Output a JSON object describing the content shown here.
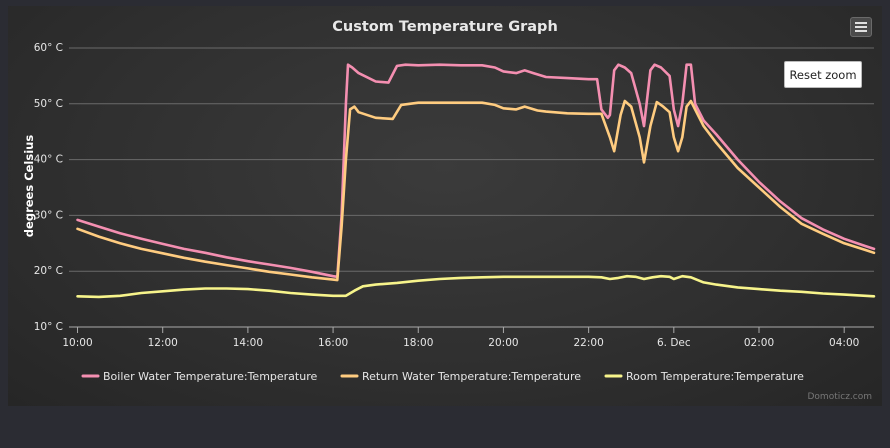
{
  "chart_data": {
    "type": "line",
    "title": "Custom Temperature Graph",
    "ylabel": "degrees Celsius",
    "xlabel": "",
    "y_unit_suffix": "° C",
    "ylim": [
      10,
      60
    ],
    "y_ticks": [
      10,
      20,
      30,
      40,
      50,
      60
    ],
    "x_range_hours": [
      9.8,
      28.7
    ],
    "x_ticks": [
      {
        "h": 10,
        "label": "10:00"
      },
      {
        "h": 12,
        "label": "12:00"
      },
      {
        "h": 14,
        "label": "14:00"
      },
      {
        "h": 16,
        "label": "16:00"
      },
      {
        "h": 18,
        "label": "18:00"
      },
      {
        "h": 20,
        "label": "20:00"
      },
      {
        "h": 22,
        "label": "22:00"
      },
      {
        "h": 24,
        "label": "6. Dec"
      },
      {
        "h": 26,
        "label": "02:00"
      },
      {
        "h": 28,
        "label": "04:00"
      }
    ],
    "grid": true,
    "legend_position": "bottom",
    "series": [
      {
        "name": "Boiler Water Temperature:Temperature",
        "color": "#f48fb1",
        "points": [
          [
            10,
            29.2
          ],
          [
            10.5,
            28
          ],
          [
            11,
            26.8
          ],
          [
            11.5,
            25.8
          ],
          [
            12,
            24.9
          ],
          [
            12.5,
            24
          ],
          [
            13,
            23.3
          ],
          [
            13.5,
            22.5
          ],
          [
            14,
            21.8
          ],
          [
            14.5,
            21.2
          ],
          [
            15,
            20.6
          ],
          [
            15.5,
            19.9
          ],
          [
            16,
            19.1
          ],
          [
            16.1,
            19
          ],
          [
            16.2,
            30
          ],
          [
            16.3,
            50
          ],
          [
            16.35,
            57
          ],
          [
            16.45,
            56.5
          ],
          [
            16.6,
            55.5
          ],
          [
            17,
            54
          ],
          [
            17.3,
            53.8
          ],
          [
            17.5,
            56.8
          ],
          [
            17.7,
            57
          ],
          [
            18,
            56.9
          ],
          [
            18.5,
            57
          ],
          [
            19,
            56.9
          ],
          [
            19.5,
            56.9
          ],
          [
            19.8,
            56.5
          ],
          [
            20,
            55.8
          ],
          [
            20.3,
            55.5
          ],
          [
            20.5,
            56
          ],
          [
            20.7,
            55.5
          ],
          [
            21,
            54.8
          ],
          [
            21.5,
            54.6
          ],
          [
            22,
            54.4
          ],
          [
            22.2,
            54.4
          ],
          [
            22.3,
            49
          ],
          [
            22.45,
            47.5
          ],
          [
            22.5,
            48
          ],
          [
            22.6,
            56
          ],
          [
            22.7,
            57
          ],
          [
            22.85,
            56.5
          ],
          [
            23,
            55.5
          ],
          [
            23.2,
            50
          ],
          [
            23.3,
            46
          ],
          [
            23.45,
            56
          ],
          [
            23.55,
            57
          ],
          [
            23.7,
            56.5
          ],
          [
            23.9,
            55
          ],
          [
            24,
            49
          ],
          [
            24.1,
            46
          ],
          [
            24.2,
            50
          ],
          [
            24.3,
            57
          ],
          [
            24.4,
            57
          ],
          [
            24.5,
            50
          ],
          [
            24.7,
            47
          ],
          [
            25,
            44.5
          ],
          [
            25.5,
            40
          ],
          [
            26,
            36
          ],
          [
            26.5,
            32.5
          ],
          [
            27,
            29.5
          ],
          [
            27.5,
            27.5
          ],
          [
            28,
            25.8
          ],
          [
            28.5,
            24.5
          ],
          [
            28.7,
            24
          ]
        ]
      },
      {
        "name": "Return Water Temperature:Temperature",
        "color": "#ffcc80",
        "points": [
          [
            10,
            27.6
          ],
          [
            10.5,
            26.2
          ],
          [
            11,
            25
          ],
          [
            11.5,
            24
          ],
          [
            12,
            23.2
          ],
          [
            12.5,
            22.4
          ],
          [
            13,
            21.7
          ],
          [
            13.5,
            21.1
          ],
          [
            14,
            20.5
          ],
          [
            14.5,
            19.9
          ],
          [
            15,
            19.4
          ],
          [
            15.5,
            18.9
          ],
          [
            16,
            18.5
          ],
          [
            16.1,
            18.4
          ],
          [
            16.2,
            28
          ],
          [
            16.3,
            40
          ],
          [
            16.4,
            49
          ],
          [
            16.5,
            49.5
          ],
          [
            16.6,
            48.5
          ],
          [
            17,
            47.5
          ],
          [
            17.4,
            47.3
          ],
          [
            17.6,
            49.8
          ],
          [
            18,
            50.2
          ],
          [
            18.5,
            50.2
          ],
          [
            19,
            50.2
          ],
          [
            19.5,
            50.2
          ],
          [
            19.8,
            49.8
          ],
          [
            20,
            49.2
          ],
          [
            20.3,
            49
          ],
          [
            20.5,
            49.5
          ],
          [
            20.8,
            48.8
          ],
          [
            21,
            48.6
          ],
          [
            21.5,
            48.3
          ],
          [
            22,
            48.2
          ],
          [
            22.3,
            48.2
          ],
          [
            22.5,
            44
          ],
          [
            22.6,
            41.5
          ],
          [
            22.75,
            48
          ],
          [
            22.85,
            50.5
          ],
          [
            23,
            49.5
          ],
          [
            23.2,
            44
          ],
          [
            23.3,
            39.5
          ],
          [
            23.45,
            46
          ],
          [
            23.6,
            50.3
          ],
          [
            23.75,
            49.5
          ],
          [
            23.9,
            48.5
          ],
          [
            24,
            44
          ],
          [
            24.1,
            41.5
          ],
          [
            24.2,
            44
          ],
          [
            24.3,
            49.5
          ],
          [
            24.4,
            50.5
          ],
          [
            24.5,
            49
          ],
          [
            24.7,
            46
          ],
          [
            25,
            43
          ],
          [
            25.5,
            38.5
          ],
          [
            26,
            35
          ],
          [
            26.5,
            31.5
          ],
          [
            27,
            28.5
          ],
          [
            27.5,
            26.7
          ],
          [
            28,
            25
          ],
          [
            28.5,
            23.8
          ],
          [
            28.7,
            23.3
          ]
        ]
      },
      {
        "name": "Room Temperature:Temperature",
        "color": "#f7f48b",
        "points": [
          [
            10,
            15.5
          ],
          [
            10.5,
            15.4
          ],
          [
            11,
            15.6
          ],
          [
            11.5,
            16.1
          ],
          [
            12,
            16.4
          ],
          [
            12.5,
            16.7
          ],
          [
            13,
            16.9
          ],
          [
            13.5,
            16.9
          ],
          [
            14,
            16.8
          ],
          [
            14.5,
            16.5
          ],
          [
            15,
            16.1
          ],
          [
            15.5,
            15.8
          ],
          [
            16,
            15.6
          ],
          [
            16.3,
            15.6
          ],
          [
            16.5,
            16.5
          ],
          [
            16.7,
            17.3
          ],
          [
            17,
            17.6
          ],
          [
            17.5,
            17.9
          ],
          [
            18,
            18.3
          ],
          [
            18.5,
            18.6
          ],
          [
            19,
            18.8
          ],
          [
            19.5,
            18.9
          ],
          [
            20,
            19
          ],
          [
            20.5,
            19
          ],
          [
            21,
            19
          ],
          [
            21.5,
            19
          ],
          [
            22,
            19
          ],
          [
            22.3,
            18.9
          ],
          [
            22.5,
            18.6
          ],
          [
            22.7,
            18.8
          ],
          [
            22.9,
            19.1
          ],
          [
            23.1,
            19
          ],
          [
            23.3,
            18.6
          ],
          [
            23.5,
            18.9
          ],
          [
            23.7,
            19.1
          ],
          [
            23.9,
            19
          ],
          [
            24,
            18.6
          ],
          [
            24.2,
            19.1
          ],
          [
            24.4,
            18.9
          ],
          [
            24.7,
            18
          ],
          [
            25,
            17.6
          ],
          [
            25.5,
            17.1
          ],
          [
            26,
            16.8
          ],
          [
            26.5,
            16.5
          ],
          [
            27,
            16.3
          ],
          [
            27.5,
            16
          ],
          [
            28,
            15.8
          ],
          [
            28.5,
            15.6
          ],
          [
            28.7,
            15.5
          ]
        ]
      }
    ]
  },
  "ui": {
    "reset_zoom_label": "Reset zoom",
    "credits": "Domoticz.com"
  }
}
